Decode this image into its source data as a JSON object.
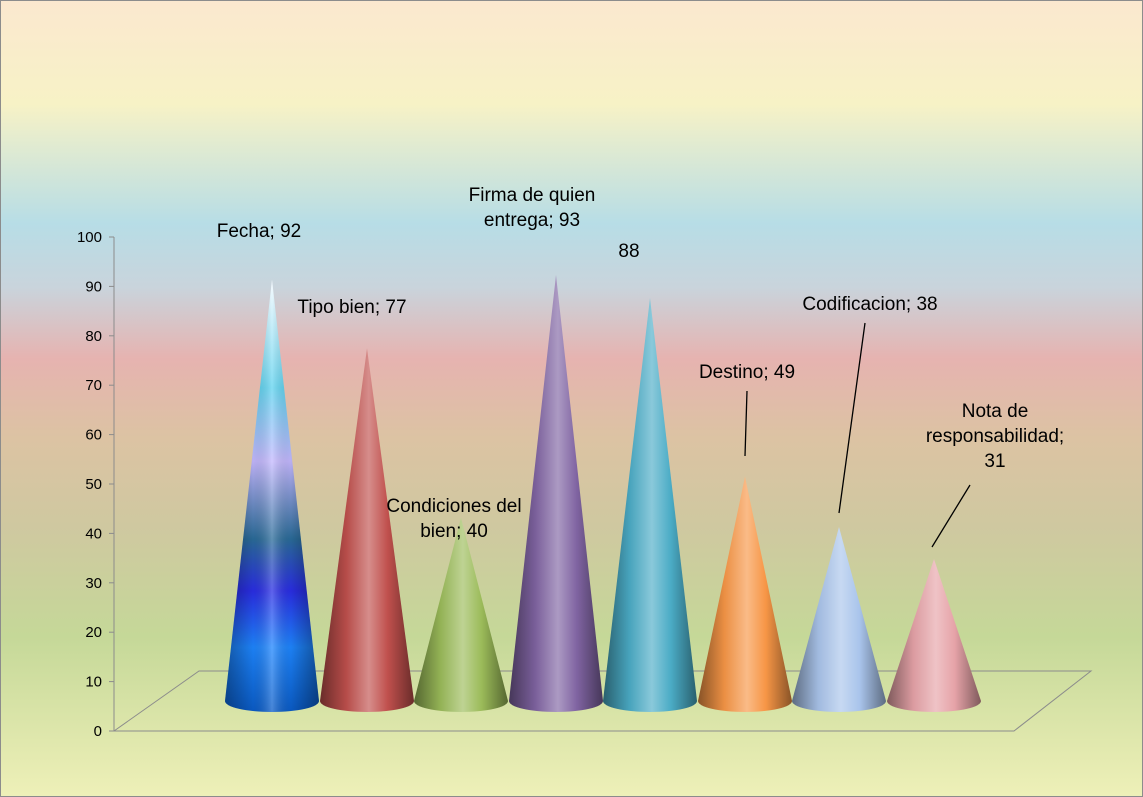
{
  "chart_data": {
    "type": "cone",
    "categories": [
      "Fecha",
      "Tipo bien",
      "Condiciones del bien",
      "Firma de quien entrega",
      "",
      "Destino",
      "Codificacion",
      "Nota de responsabilidad"
    ],
    "values": [
      92,
      77,
      40,
      93,
      88,
      49,
      38,
      31
    ],
    "data_labels": [
      [
        "Fecha; 92"
      ],
      [
        "Tipo bien; 77"
      ],
      [
        "Condiciones del",
        "bien; 40"
      ],
      [
        "Firma de quien",
        "entrega; 93"
      ],
      [
        "88"
      ],
      [
        "Destino; 49"
      ],
      [
        "Codificacion; 38"
      ],
      [
        "Nota de",
        "responsabilidad;",
        "31"
      ]
    ],
    "y_ticks": [
      "0",
      "10",
      "20",
      "30",
      "40",
      "50",
      "60",
      "70",
      "80",
      "90",
      "100"
    ],
    "ylim": [
      0,
      100
    ],
    "colors": [
      "#1e6fd0",
      "#c0504d",
      "#9bbb59",
      "#8064a2",
      "#4bacc6",
      "#f79646",
      "#a9c4eb",
      "#e6a3a8"
    ],
    "title": "",
    "xlabel": "",
    "ylabel": ""
  }
}
